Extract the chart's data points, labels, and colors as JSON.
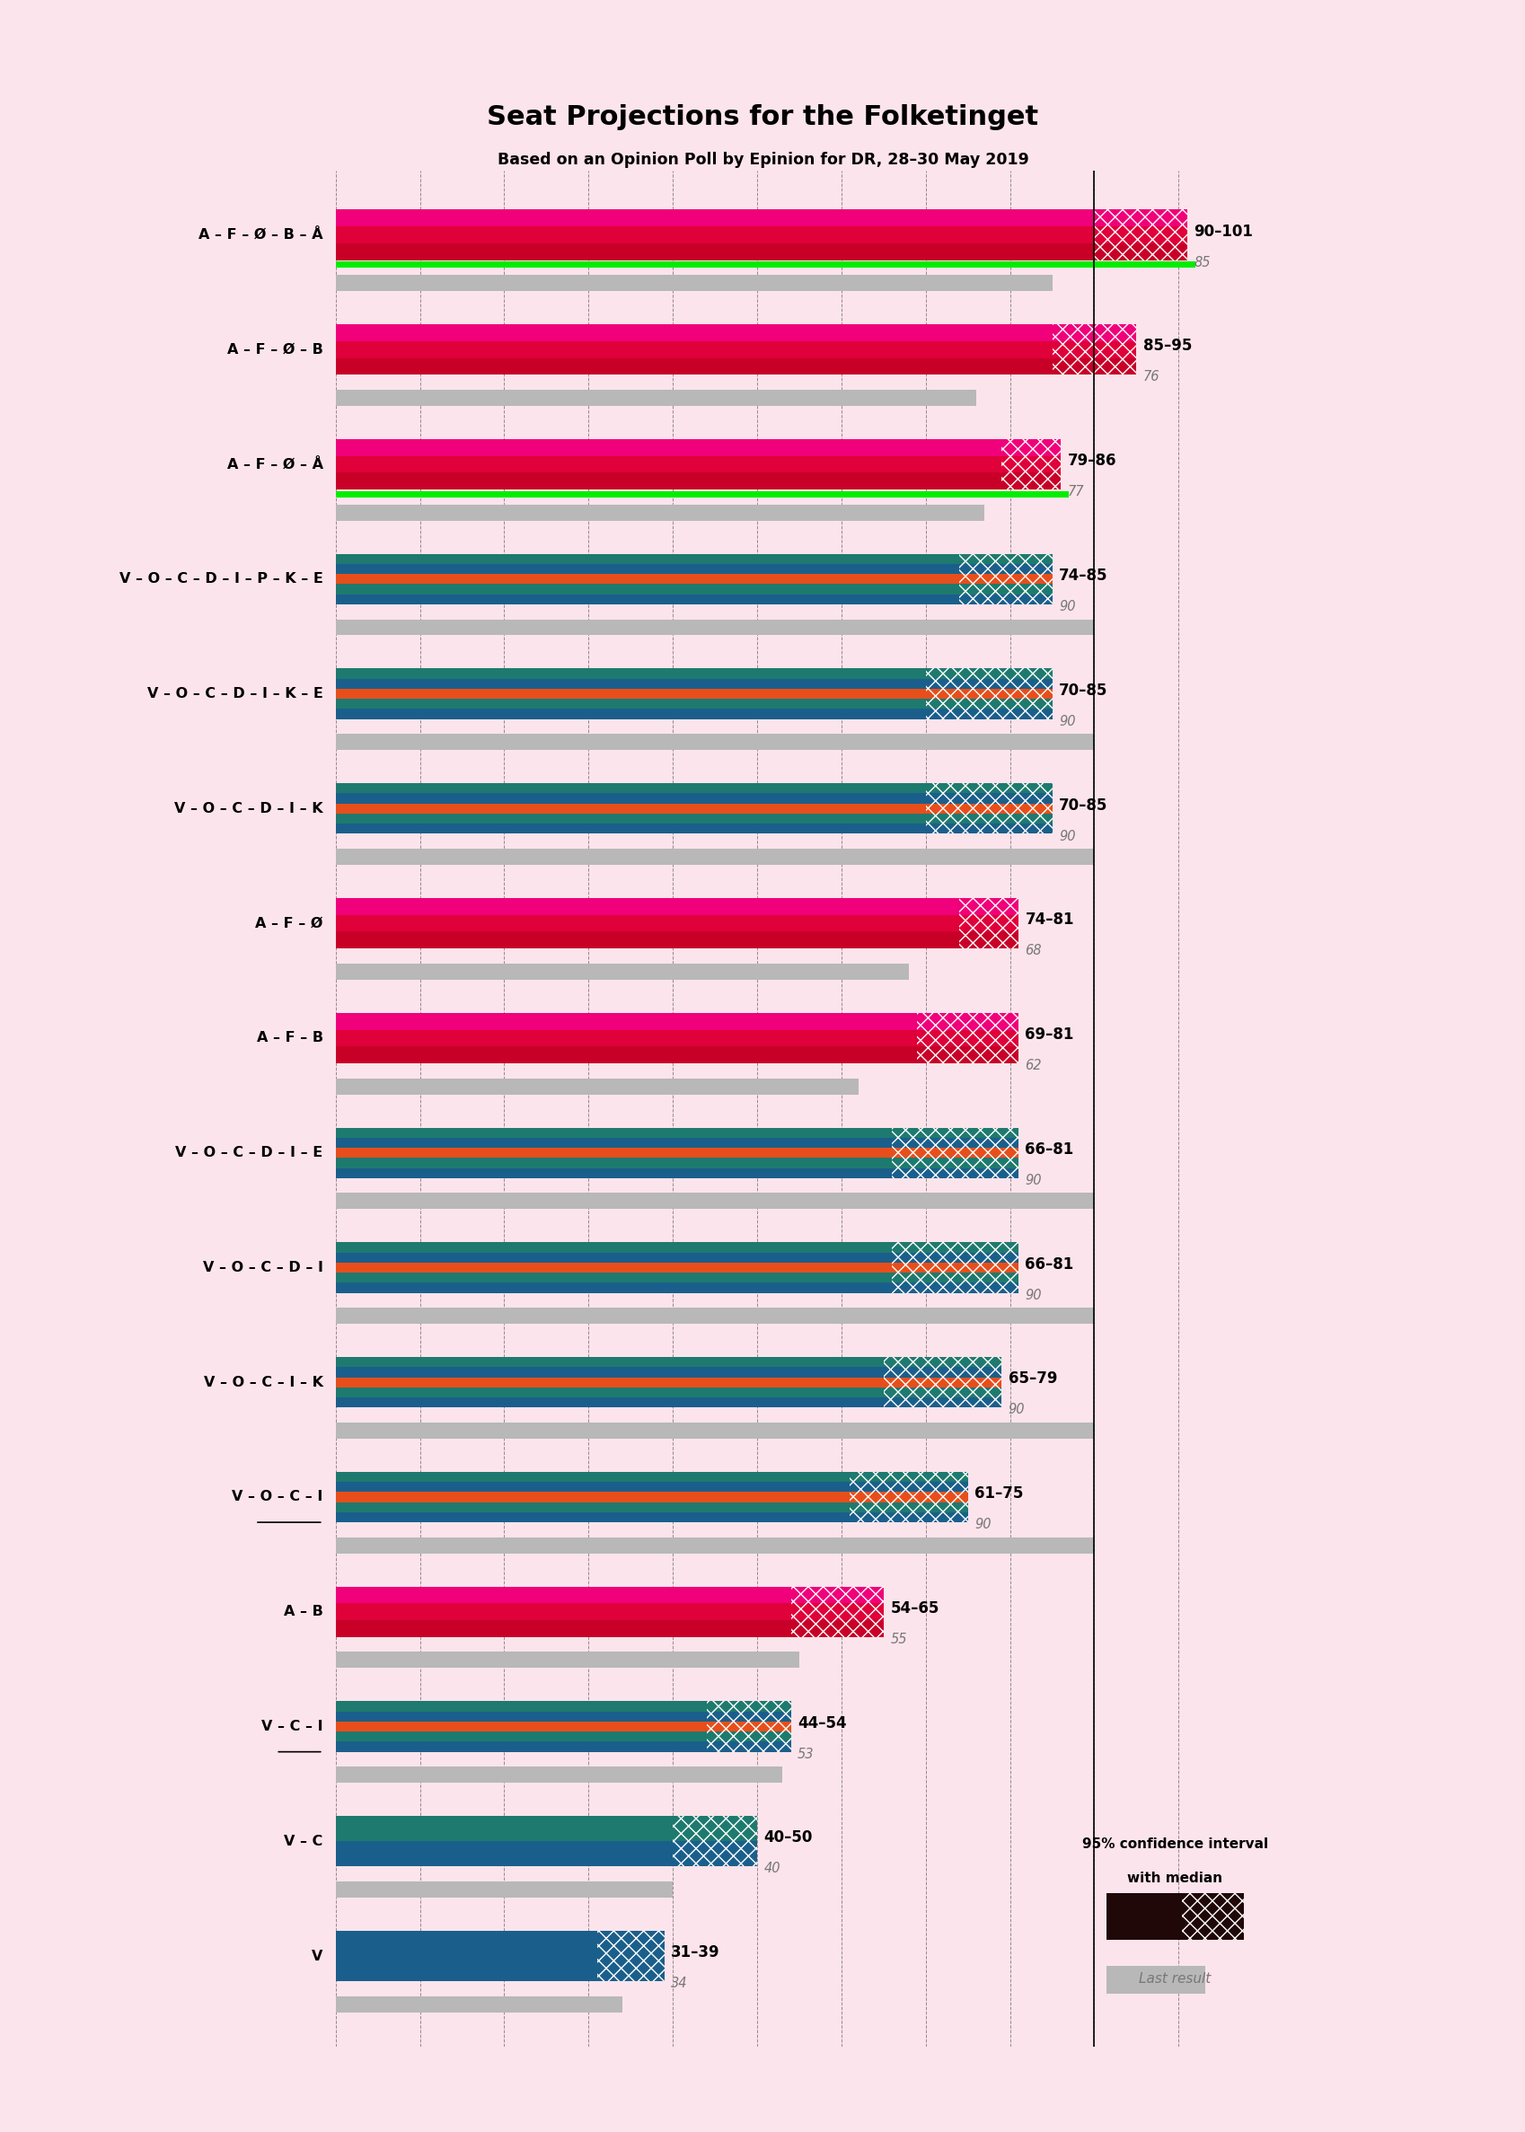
{
  "title": "Seat Projections for the Folketinget",
  "subtitle": "Based on an Opinion Poll by Epinion for DR, 28–30 May 2019",
  "background_color": "#fce4ec",
  "coalitions": [
    {
      "label": "A – F – Ø – B – Å",
      "underline": false,
      "ci_low": 90,
      "ci_high": 101,
      "last": 85,
      "has_green": true,
      "type": "left",
      "colors": [
        "#cc0022",
        "#e8003c",
        "#ff007f"
      ]
    },
    {
      "label": "A – F – Ø – B",
      "underline": false,
      "ci_low": 85,
      "ci_high": 95,
      "last": 76,
      "has_green": false,
      "type": "left",
      "colors": [
        "#cc0022",
        "#e8003c",
        "#ff007f"
      ]
    },
    {
      "label": "A – F – Ø – Å",
      "underline": false,
      "ci_low": 79,
      "ci_high": 86,
      "last": 77,
      "has_green": true,
      "type": "left",
      "colors": [
        "#cc0022",
        "#e8003c",
        "#ff007f"
      ]
    },
    {
      "label": "V – O – C – D – I – P – K – E",
      "underline": false,
      "ci_low": 74,
      "ci_high": 85,
      "last": 90,
      "has_green": false,
      "type": "right",
      "colors": [
        "#1a5f8b",
        "#1e7a6e",
        "#e84e1b",
        "#1a5f8b",
        "#1e7a6e"
      ]
    },
    {
      "label": "V – O – C – D – I – K – E",
      "underline": false,
      "ci_low": 70,
      "ci_high": 85,
      "last": 90,
      "has_green": false,
      "type": "right",
      "colors": [
        "#1a5f8b",
        "#1e7a6e",
        "#e84e1b",
        "#1a5f8b",
        "#1e7a6e"
      ]
    },
    {
      "label": "V – O – C – D – I – K",
      "underline": false,
      "ci_low": 70,
      "ci_high": 85,
      "last": 90,
      "has_green": false,
      "type": "right",
      "colors": [
        "#1a5f8b",
        "#1e7a6e",
        "#e84e1b",
        "#1a5f8b",
        "#1e7a6e"
      ]
    },
    {
      "label": "A – F – Ø",
      "underline": false,
      "ci_low": 74,
      "ci_high": 81,
      "last": 68,
      "has_green": false,
      "type": "left",
      "colors": [
        "#cc0022",
        "#e8003c",
        "#ff007f"
      ]
    },
    {
      "label": "A – F – B",
      "underline": false,
      "ci_low": 69,
      "ci_high": 81,
      "last": 62,
      "has_green": false,
      "type": "left",
      "colors": [
        "#cc0022",
        "#e8003c",
        "#ff007f"
      ]
    },
    {
      "label": "V – O – C – D – I – E",
      "underline": false,
      "ci_low": 66,
      "ci_high": 81,
      "last": 90,
      "has_green": false,
      "type": "right",
      "colors": [
        "#1a5f8b",
        "#1e7a6e",
        "#e84e1b",
        "#1a5f8b",
        "#1e7a6e"
      ]
    },
    {
      "label": "V – O – C – D – I",
      "underline": false,
      "ci_low": 66,
      "ci_high": 81,
      "last": 90,
      "has_green": false,
      "type": "right",
      "colors": [
        "#1a5f8b",
        "#1e7a6e",
        "#e84e1b",
        "#1a5f8b",
        "#1e7a6e"
      ]
    },
    {
      "label": "V – O – C – I – K",
      "underline": false,
      "ci_low": 65,
      "ci_high": 79,
      "last": 90,
      "has_green": false,
      "type": "right",
      "colors": [
        "#1a5f8b",
        "#1e7a6e",
        "#e84e1b",
        "#1a5f8b",
        "#1e7a6e"
      ]
    },
    {
      "label": "V – O – C – I",
      "underline": true,
      "ci_low": 61,
      "ci_high": 75,
      "last": 90,
      "has_green": false,
      "type": "right",
      "colors": [
        "#1a5f8b",
        "#1e7a6e",
        "#e84e1b",
        "#1a5f8b",
        "#1e7a6e"
      ]
    },
    {
      "label": "A – B",
      "underline": false,
      "ci_low": 54,
      "ci_high": 65,
      "last": 55,
      "has_green": false,
      "type": "left",
      "colors": [
        "#cc0022",
        "#e8003c",
        "#ff007f"
      ]
    },
    {
      "label": "V – C – I",
      "underline": true,
      "ci_low": 44,
      "ci_high": 54,
      "last": 53,
      "has_green": false,
      "type": "right",
      "colors": [
        "#1a5f8b",
        "#1e7a6e",
        "#e84e1b",
        "#1a5f8b",
        "#1e7a6e"
      ]
    },
    {
      "label": "V – C",
      "underline": false,
      "ci_low": 40,
      "ci_high": 50,
      "last": 40,
      "has_green": false,
      "type": "right2",
      "colors": [
        "#1a5f8b",
        "#1e7a6e"
      ]
    },
    {
      "label": "V",
      "underline": false,
      "ci_low": 31,
      "ci_high": 39,
      "last": 34,
      "has_green": false,
      "type": "right1",
      "colors": [
        "#1a5f8b"
      ]
    }
  ],
  "x_max": 105,
  "majority": 90,
  "gray": "#b8b8b8",
  "green": "#00ee00",
  "hatch_left_solid": "#cc0022",
  "hatch_left_pink": "#ff007f",
  "hatch_right": "#1a5f8b",
  "legend_dark": "#200808"
}
